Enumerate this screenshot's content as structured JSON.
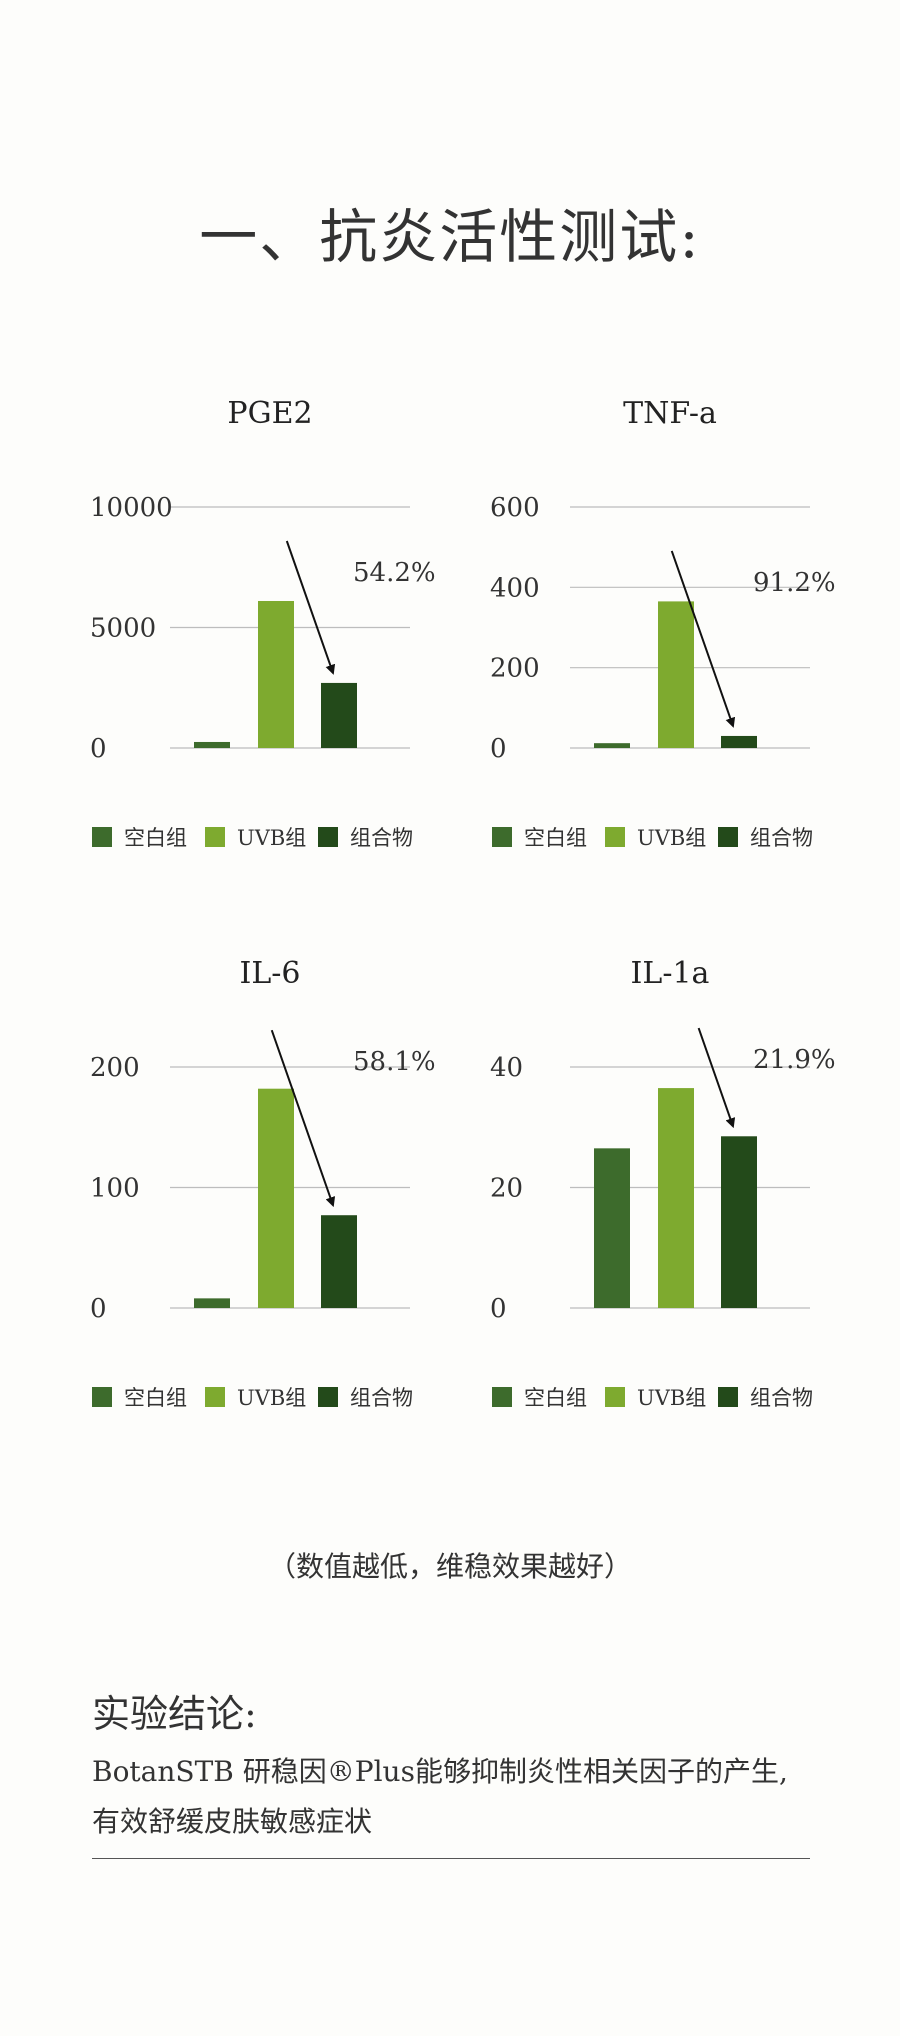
{
  "page_title": "一、抗炎活性测试:",
  "note": "（数值越低，维稳效果越好）",
  "conclusion": {
    "heading": "实验结论:",
    "line1": "BotanSTB 研稳因®Plus能够抑制炎性相关因子的产生,",
    "line2": "有效舒缓皮肤敏感症状"
  },
  "colors": {
    "blank": "#3d6b2c",
    "uvb": "#7eaa2f",
    "combo": "#234a1a"
  },
  "chart_data": [
    {
      "type": "bar",
      "title": "PGE2",
      "categories": [
        "空白组",
        "UVB组",
        "组合物"
      ],
      "values": [
        250,
        6100,
        2700
      ],
      "ylim": [
        0,
        10000
      ],
      "yticks": [
        0,
        5000,
        10000
      ],
      "annotation": "54.2%",
      "grid": true,
      "legend": "bottom"
    },
    {
      "type": "bar",
      "title": "TNF-a",
      "categories": [
        "空白组",
        "UVB组",
        "组合物"
      ],
      "values": [
        12,
        365,
        30
      ],
      "ylim": [
        0,
        600
      ],
      "yticks": [
        0,
        200,
        400,
        600
      ],
      "annotation": "91.2%",
      "grid": true,
      "legend": "bottom"
    },
    {
      "type": "bar",
      "title": "IL-6",
      "categories": [
        "空白组",
        "UVB组",
        "组合物"
      ],
      "values": [
        8,
        182,
        77
      ],
      "ylim": [
        0,
        200
      ],
      "yticks": [
        0,
        100,
        200
      ],
      "annotation": "58.1%",
      "grid": true,
      "legend": "bottom"
    },
    {
      "type": "bar",
      "title": "IL-1a",
      "categories": [
        "空白组",
        "UVB组",
        "组合物"
      ],
      "values": [
        26.5,
        36.5,
        28.5
      ],
      "ylim": [
        0,
        40
      ],
      "yticks": [
        0,
        20,
        40
      ],
      "annotation": "21.9%",
      "grid": true,
      "legend": "bottom"
    }
  ]
}
